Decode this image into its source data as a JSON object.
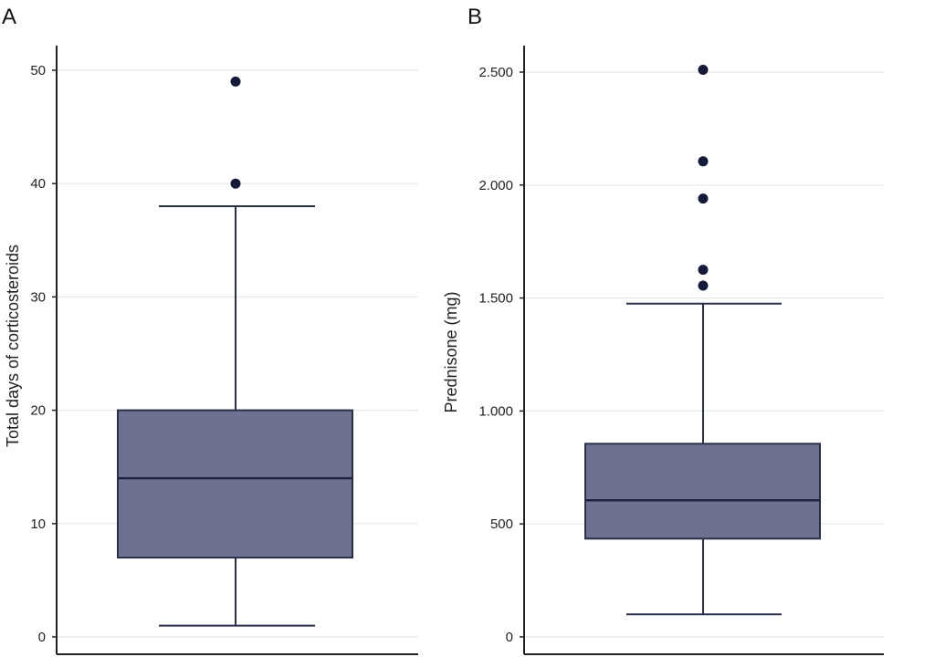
{
  "chart_data": [
    {
      "type": "boxplot",
      "panel_label": "A",
      "ylabel": "Total days of corticosteroids",
      "ylim": [
        0,
        52
      ],
      "yticks": [
        0,
        10,
        20,
        30,
        40,
        50
      ],
      "ytick_labels": [
        "0",
        "10",
        "20",
        "30",
        "40",
        "50"
      ],
      "grid": true,
      "color": "#6e7290",
      "box": {
        "whisker_low": 1,
        "q1": 7,
        "median": 14,
        "q3": 20,
        "whisker_high": 38
      },
      "outliers": [
        40,
        49
      ]
    },
    {
      "type": "boxplot",
      "panel_label": "B",
      "ylabel": "Prednisone (mg)",
      "ylim": [
        0,
        2600
      ],
      "yticks": [
        0,
        500,
        1000,
        1500,
        2000,
        2500
      ],
      "ytick_labels": [
        "0",
        "500",
        "1.000",
        "1.500",
        "2.000",
        "2.500"
      ],
      "grid": true,
      "color": "#6e7290",
      "box": {
        "whisker_low": 100,
        "q1": 435,
        "median": 605,
        "q3": 855,
        "whisker_high": 1475
      },
      "outliers": [
        1555,
        1625,
        1940,
        2105,
        2510
      ]
    }
  ]
}
